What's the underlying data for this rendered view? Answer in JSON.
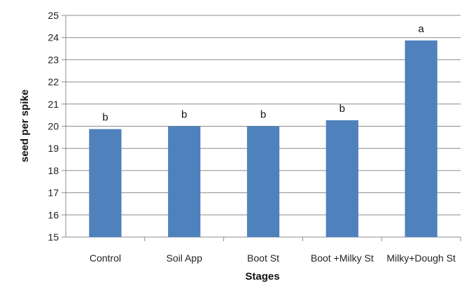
{
  "chart_data": {
    "type": "bar",
    "title": "",
    "xlabel": "Stages",
    "ylabel": "seed per spike",
    "ylim": [
      15,
      25
    ],
    "ytick_step": 1,
    "grid": true,
    "bar_color": "#4f81bd",
    "categories": [
      "Control",
      "Soil App",
      "Boot St",
      "Boot +Milky St",
      "Milky+Dough St"
    ],
    "values": [
      19.87,
      20.0,
      20.0,
      20.27,
      23.87
    ],
    "significance_labels": [
      "b",
      "b",
      "b",
      "b",
      "a"
    ]
  }
}
